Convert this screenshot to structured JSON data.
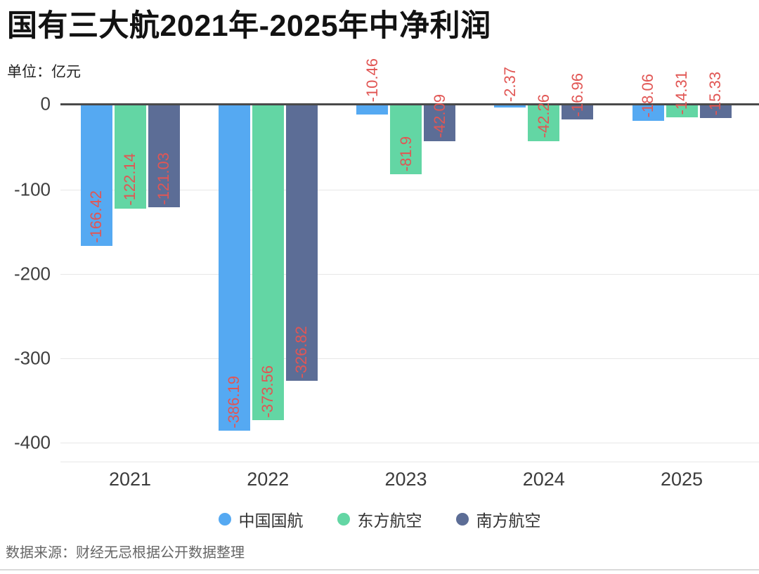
{
  "title": "国有三大航2021年-2025年中净利润",
  "unit_label": "单位：亿元",
  "source_note": "数据来源：财经无忌根据公开数据整理",
  "colors": {
    "air_china_blue": "#55a9f2",
    "china_eastern_green": "#63d6a4",
    "china_southern_slate": "#5c6d96",
    "value_label_red": "#e15654",
    "zero_axis": "#4a4a4a",
    "gridline": "#e7e7e7",
    "divider": "#d9d9d9"
  },
  "chart_data": {
    "type": "bar",
    "title": "国有三大航2021年-2025年中净利润",
    "unit": "亿元",
    "categories": [
      "2021",
      "2022",
      "2023",
      "2024",
      "2025"
    ],
    "series": [
      {
        "name": "中国国航",
        "color": "#55a9f2",
        "values": [
          -166.42,
          -386.19,
          -10.46,
          -2.37,
          -18.06
        ],
        "labels": [
          "-166.42",
          "-386.19",
          "-10.46",
          "-2.37",
          "-18.06"
        ]
      },
      {
        "name": "东方航空",
        "color": "#63d6a4",
        "values": [
          -122.14,
          -373.56,
          -81.9,
          -42.26,
          -14.31
        ],
        "labels": [
          "-122.14",
          "-373.56",
          "-81.9",
          "-42.26",
          "-14.31"
        ]
      },
      {
        "name": "南方航空",
        "color": "#5c6d96",
        "values": [
          -121.03,
          -326.82,
          -42.09,
          -16.96,
          -15.33
        ],
        "labels": [
          "-121.03",
          "-326.82",
          "-42.09",
          "-16.96",
          "-15.33"
        ]
      }
    ],
    "yticks": [
      "0",
      "-100",
      "-200",
      "-300",
      "-400"
    ],
    "ytick_values": [
      0,
      -100,
      -200,
      -300,
      -400
    ],
    "ylim": [
      0,
      -420
    ],
    "grid": true,
    "legend_position": "bottom",
    "value_labels_rotated": true
  }
}
